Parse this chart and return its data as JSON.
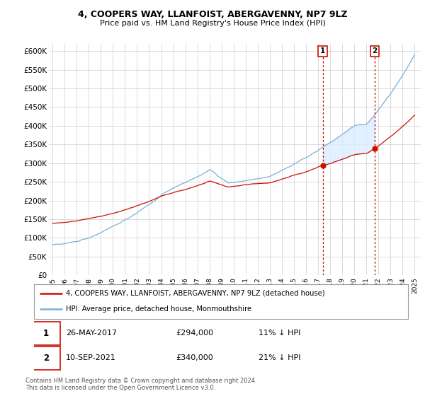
{
  "title1": "4, COOPERS WAY, LLANFOIST, ABERGAVENNY, NP7 9LZ",
  "title2": "Price paid vs. HM Land Registry's House Price Index (HPI)",
  "ylabel_ticks": [
    "£0",
    "£50K",
    "£100K",
    "£150K",
    "£200K",
    "£250K",
    "£300K",
    "£350K",
    "£400K",
    "£450K",
    "£500K",
    "£550K",
    "£600K"
  ],
  "ytick_values": [
    0,
    50000,
    100000,
    150000,
    200000,
    250000,
    300000,
    350000,
    400000,
    450000,
    500000,
    550000,
    600000
  ],
  "ylim": [
    0,
    620000
  ],
  "hpi_color": "#7ab0d4",
  "hpi_fill_color": "#ddeeff",
  "price_color": "#cc1100",
  "vline_color": "#cc1100",
  "marker1_year": 2017.38,
  "marker1_label": "1",
  "marker1_value": 294000,
  "marker1_date": "26-MAY-2017",
  "marker1_pct": "11% ↓ HPI",
  "marker2_year": 2021.69,
  "marker2_label": "2",
  "marker2_value": 340000,
  "marker2_date": "10-SEP-2021",
  "marker2_pct": "21% ↓ HPI",
  "legend_label1": "4, COOPERS WAY, LLANFOIST, ABERGAVENNY, NP7 9LZ (detached house)",
  "legend_label2": "HPI: Average price, detached house, Monmouthshire",
  "footer": "Contains HM Land Registry data © Crown copyright and database right 2024.\nThis data is licensed under the Open Government Licence v3.0.",
  "xstart": 1995,
  "xend": 2025,
  "xtick_labels": [
    "1995",
    "1996",
    "1997",
    "1998",
    "1999",
    "2000",
    "2001",
    "2002",
    "2003",
    "2004",
    "2005",
    "2006",
    "2007",
    "2008",
    "2009",
    "2010",
    "2011",
    "2012",
    "2013",
    "2014",
    "2015",
    "2016",
    "2017",
    "2018",
    "2019",
    "2020",
    "2021",
    "2022",
    "2023",
    "2024",
    "2025"
  ]
}
